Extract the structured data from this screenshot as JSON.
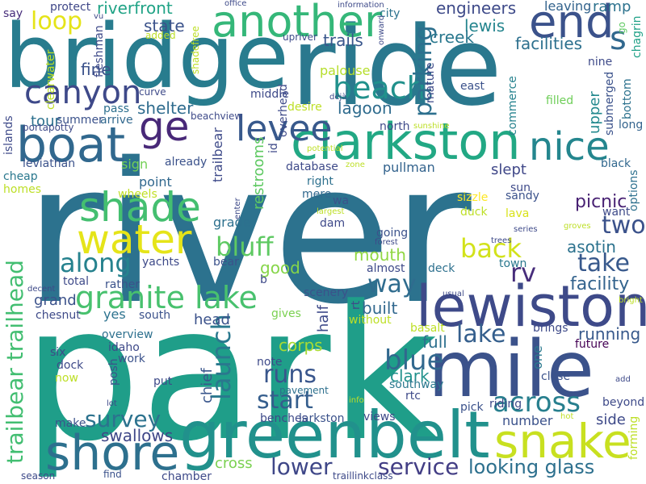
{
  "words": [
    {
      "text": "river",
      "color": "#2c728e",
      "rot": 0
    },
    {
      "text": "park",
      "color": "#1f9e89",
      "rot": 0
    },
    {
      "text": "bridge",
      "color": "#287c8e",
      "rot": 0
    },
    {
      "text": "ride",
      "color": "#2a788e",
      "rot": 0
    },
    {
      "text": "greenbelt",
      "color": "#21918c",
      "rot": 0
    },
    {
      "text": "mile",
      "color": "#3b528b",
      "rot": 0
    },
    {
      "text": "lewiston",
      "color": "#3e4a89",
      "rot": 0
    },
    {
      "text": "clarkston",
      "color": "#22a884",
      "rot": 0
    },
    {
      "text": "boat",
      "color": "#31688e",
      "rot": 0
    },
    {
      "text": "another",
      "color": "#35b779",
      "rot": 0
    },
    {
      "text": "shore",
      "color": "#2d708e",
      "rot": 0
    },
    {
      "text": "snake",
      "color": "#c8e020",
      "rot": 0
    },
    {
      "text": "end",
      "color": "#3b528b",
      "rot": 0
    },
    {
      "text": "canyon",
      "color": "#3e4989",
      "rot": 0
    },
    {
      "text": "levee",
      "color": "#38598c",
      "rot": 0
    },
    {
      "text": "shade",
      "color": "#44bf70",
      "rot": 0
    },
    {
      "text": "water",
      "color": "#e5e419",
      "rot": 0
    },
    {
      "text": "nice",
      "color": "#24868e",
      "rot": 0
    },
    {
      "text": "granite lake",
      "color": "#48c16e",
      "rot": 0
    },
    {
      "text": "beach",
      "color": "#21918c",
      "rot": 0
    },
    {
      "text": "ge",
      "color": "#482878",
      "rot": 0
    },
    {
      "text": "trailbear trailhead",
      "color": "#42be71",
      "rot": 270
    },
    {
      "text": "parking",
      "color": "#2d708e",
      "rot": 270
    },
    {
      "text": "bluff",
      "color": "#5ec962",
      "rot": 0
    },
    {
      "text": "blue",
      "color": "#31688e",
      "rot": 0
    },
    {
      "text": "along",
      "color": "#26828e",
      "rot": 0
    },
    {
      "text": "launch",
      "color": "#2a788e",
      "rot": 270
    },
    {
      "text": "across",
      "color": "#277f8e",
      "rot": 0
    },
    {
      "text": "back",
      "color": "#d2e21b",
      "rot": 0
    },
    {
      "text": "two",
      "color": "#3b528b",
      "rot": 0
    },
    {
      "text": "rv",
      "color": "#472d7b",
      "rot": 0
    },
    {
      "text": "way",
      "color": "#2f6c8e",
      "rot": 0
    },
    {
      "text": "lake",
      "color": "#355f8d",
      "rot": 0
    },
    {
      "text": "take",
      "color": "#38598c",
      "rot": 0
    },
    {
      "text": "runs",
      "color": "#39568c",
      "rot": 0
    },
    {
      "text": "start",
      "color": "#355e8d",
      "rot": 0
    },
    {
      "text": "survey",
      "color": "#2c728e",
      "rot": 0
    },
    {
      "text": "service",
      "color": "#433e85",
      "rot": 0
    },
    {
      "text": "lower",
      "color": "#3f4788",
      "rot": 0
    },
    {
      "text": "looking glass",
      "color": "#2d708e",
      "rot": 0
    },
    {
      "text": "s",
      "color": "#31688e",
      "rot": 0
    },
    {
      "text": "loop",
      "color": "#e5e419",
      "rot": 0
    },
    {
      "text": "picnic",
      "color": "#482173",
      "rot": 0
    },
    {
      "text": "facility",
      "color": "#33638d",
      "rot": 0
    },
    {
      "text": "asotin",
      "color": "#2c728e",
      "rot": 0
    },
    {
      "text": "riverfront",
      "color": "#20a386",
      "rot": 0
    },
    {
      "text": "state",
      "color": "#3b528b",
      "rot": 0
    },
    {
      "text": "engineers",
      "color": "#3e4a89",
      "rot": 0
    },
    {
      "text": "lewis",
      "color": "#25858e",
      "rot": 0
    },
    {
      "text": "creek",
      "color": "#2a788e",
      "rot": 0
    },
    {
      "text": "facilities",
      "color": "#2d708e",
      "rot": 0
    },
    {
      "text": "trails",
      "color": "#39568c",
      "rot": 0
    },
    {
      "text": "fine",
      "color": "#3b528b",
      "rot": 0
    },
    {
      "text": "shelter",
      "color": "#2f6c8e",
      "rot": 0
    },
    {
      "text": "lagoon",
      "color": "#2f6c8e",
      "rot": 0
    },
    {
      "text": "mouth",
      "color": "#90d743",
      "rot": 0
    },
    {
      "text": "good",
      "color": "#86d549",
      "rot": 0
    },
    {
      "text": "corps",
      "color": "#a8db34",
      "rot": 0
    },
    {
      "text": "full",
      "color": "#2d708e",
      "rot": 0
    },
    {
      "text": "clark",
      "color": "#21918c",
      "rot": 0
    },
    {
      "text": "running",
      "color": "#38598c",
      "rot": 0
    },
    {
      "text": "swallows",
      "color": "#3f4788",
      "rot": 0
    },
    {
      "text": "built",
      "color": "#31688e",
      "rot": 0
    },
    {
      "text": "grand",
      "color": "#3b528b",
      "rot": 0
    },
    {
      "text": "tour",
      "color": "#2d708e",
      "rot": 0
    },
    {
      "text": "yes",
      "color": "#2c728e",
      "rot": 0
    },
    {
      "text": "half",
      "color": "#3e4a89",
      "rot": 270
    },
    {
      "text": "head",
      "color": "#3b528b",
      "rot": 0
    },
    {
      "text": "chief",
      "color": "#39568c",
      "rot": 270
    },
    {
      "text": "cross",
      "color": "#7ad151",
      "rot": 0
    },
    {
      "text": "ramp",
      "color": "#2c728e",
      "rot": 0
    },
    {
      "text": "upper",
      "color": "#23898e",
      "rot": 270
    },
    {
      "text": "number",
      "color": "#3b528b",
      "rot": 0
    },
    {
      "text": "side",
      "color": "#3e4a89",
      "rot": 0
    },
    {
      "text": "one",
      "color": "#2a788e",
      "rot": 270
    },
    {
      "text": "slept",
      "color": "#3f4788",
      "rot": 0
    },
    {
      "text": "leaving",
      "color": "#33638d",
      "rot": 0
    },
    {
      "text": "city",
      "color": "#2c728e",
      "rot": 0
    },
    {
      "text": "palouse",
      "color": "#b5de2b",
      "rot": 0
    },
    {
      "text": "middle",
      "color": "#3e4a89",
      "rot": 0
    },
    {
      "text": "pass",
      "color": "#2d708e",
      "rot": 0
    },
    {
      "text": "arrive",
      "color": "#31688e",
      "rot": 0
    },
    {
      "text": "summer",
      "color": "#3b528b",
      "rot": 0
    },
    {
      "text": "protect",
      "color": "#3f4788",
      "rot": 0
    },
    {
      "text": "say",
      "color": "#472d7b",
      "rot": 0
    },
    {
      "text": "cheap",
      "color": "#2a788e",
      "rot": 0
    },
    {
      "text": "homes",
      "color": "#bddf26",
      "rot": 0
    },
    {
      "text": "leviathan",
      "color": "#3b528b",
      "rot": 0
    },
    {
      "text": "point",
      "color": "#31688e",
      "rot": 0
    },
    {
      "text": "wheels",
      "color": "#c0df25",
      "rot": 0
    },
    {
      "text": "sign",
      "color": "#73d056",
      "rot": 0
    },
    {
      "text": "already",
      "color": "#3b528b",
      "rot": 0
    },
    {
      "text": "database",
      "color": "#3e4a89",
      "rot": 0
    },
    {
      "text": "pullman",
      "color": "#33638d",
      "rot": 0
    },
    {
      "text": "right",
      "color": "#2d708e",
      "rot": 0
    },
    {
      "text": "mere",
      "color": "#31688e",
      "rot": 0
    },
    {
      "text": "dam",
      "color": "#3e4989",
      "rot": 0
    },
    {
      "text": "going",
      "color": "#3b528b",
      "rot": 0
    },
    {
      "text": "deck",
      "color": "#2d708e",
      "rot": 0
    },
    {
      "text": "town",
      "color": "#2a788e",
      "rot": 0
    },
    {
      "text": "almost",
      "color": "#3e4a89",
      "rot": 0
    },
    {
      "text": "sandy",
      "color": "#3b528b",
      "rot": 0
    },
    {
      "text": "sun",
      "color": "#3e4a89",
      "rot": 0
    },
    {
      "text": "sizzle",
      "color": "#fde725",
      "rot": 0
    },
    {
      "text": "duck",
      "color": "#bddf26",
      "rot": 0
    },
    {
      "text": "lava",
      "color": "#d8e219",
      "rot": 0
    },
    {
      "text": "want",
      "color": "#3e4a89",
      "rot": 0
    },
    {
      "text": "black",
      "color": "#31688e",
      "rot": 0
    },
    {
      "text": "options",
      "color": "#2d708e",
      "rot": 270
    },
    {
      "text": "east",
      "color": "#3b528b",
      "rot": 0
    },
    {
      "text": "commerce",
      "color": "#26828e",
      "rot": 270
    },
    {
      "text": "filled",
      "color": "#6ece58",
      "rot": 0
    },
    {
      "text": "submerged",
      "color": "#3b528b",
      "rot": 270
    },
    {
      "text": "nine",
      "color": "#3e4a89",
      "rot": 0
    },
    {
      "text": "long",
      "color": "#33638d",
      "rot": 0
    },
    {
      "text": "bottom",
      "color": "#2c728e",
      "rot": 270
    },
    {
      "text": "chagrin",
      "color": "#1fa187",
      "rot": 270
    },
    {
      "text": "go",
      "color": "#5ec962",
      "rot": 270
    },
    {
      "text": "trailbear",
      "color": "#3e4a89",
      "rot": 0
    },
    {
      "text": "restrooms",
      "color": "#5ec962",
      "rot": 270
    },
    {
      "text": "wa",
      "color": "#3b528b",
      "rot": 270
    },
    {
      "text": "b",
      "color": "#3e4a89",
      "rot": 0
    },
    {
      "text": "scenery",
      "color": "#3b528b",
      "rot": 0
    },
    {
      "text": "gives",
      "color": "#7ad151",
      "rot": 0
    },
    {
      "text": "without",
      "color": "#bddf26",
      "rot": 0
    },
    {
      "text": "idaho",
      "color": "#3e4989",
      "rot": 0
    },
    {
      "text": "overview",
      "color": "#2d708e",
      "rot": 0
    },
    {
      "text": "work",
      "color": "#3b528b",
      "rot": 0
    },
    {
      "text": "six",
      "color": "#3e4a89",
      "rot": 0
    },
    {
      "text": "dock",
      "color": "#3e4a89",
      "rot": 0
    },
    {
      "text": "now",
      "color": "#bddf26",
      "rot": 0
    },
    {
      "text": "posh",
      "color": "#3b528b",
      "rot": 0
    },
    {
      "text": "put",
      "color": "#3e4a89",
      "rot": 270
    },
    {
      "text": "note",
      "color": "#3e4a89",
      "rot": 0
    },
    {
      "text": "pavement",
      "color": "#2d708e",
      "rot": 0
    },
    {
      "text": "south",
      "color": "#3b528b",
      "rot": 0
    },
    {
      "text": "chesnut",
      "color": "#3e4a89",
      "rot": 0
    },
    {
      "text": "rather",
      "color": "#3b528b",
      "rot": 0
    },
    {
      "text": "total",
      "color": "#3e4a89",
      "rot": 0
    },
    {
      "text": "bear",
      "color": "#3b528b",
      "rot": 0
    },
    {
      "text": "yachts",
      "color": "#3e4a89",
      "rot": 0
    },
    {
      "text": "grade",
      "color": "#2d708e",
      "rot": 0
    },
    {
      "text": "southway",
      "color": "#2a788e",
      "rot": 0
    },
    {
      "text": "rtc",
      "color": "#3e4a89",
      "rot": 0
    },
    {
      "text": "basalt",
      "color": "#bddf26",
      "rot": 0
    },
    {
      "text": "brings",
      "color": "#3e4a89",
      "rot": 0
    },
    {
      "text": "future",
      "color": "#440154",
      "rot": 0
    },
    {
      "text": "close",
      "color": "#3b528b",
      "rot": 0
    },
    {
      "text": "add",
      "color": "#3e4a89",
      "rot": 0
    },
    {
      "text": "beyond",
      "color": "#3e4a89",
      "rot": 0
    },
    {
      "text": "riding",
      "color": "#3e4a89",
      "rot": 0
    },
    {
      "text": "pick",
      "color": "#3b528b",
      "rot": 0
    },
    {
      "text": "hot",
      "color": "#c0df25",
      "rot": 0
    },
    {
      "text": "forming",
      "color": "#bddf26",
      "rot": 0
    },
    {
      "text": "views",
      "color": "#3e4a89",
      "rot": 270
    },
    {
      "text": "larkston",
      "color": "#3b528b",
      "rot": 0
    },
    {
      "text": "benches",
      "color": "#3e4a89",
      "rot": 0
    },
    {
      "text": "make",
      "color": "#3b528b",
      "rot": 0
    },
    {
      "text": "lot",
      "color": "#3e4a89",
      "rot": 0
    },
    {
      "text": "find",
      "color": "#3b528b",
      "rot": 0
    },
    {
      "text": "season",
      "color": "#3e4a89",
      "rot": 0
    },
    {
      "text": "chamber",
      "color": "#3e4a89",
      "rot": 0
    },
    {
      "text": "traillinkclass",
      "color": "#3e4a89",
      "rot": 0
    },
    {
      "text": "info",
      "color": "#bddf26",
      "rot": 0
    },
    {
      "text": "bright",
      "color": "#bddf26",
      "rot": 0
    },
    {
      "text": "usual",
      "color": "#3e4a89",
      "rot": 0
    },
    {
      "text": "series",
      "color": "#3e4a89",
      "rot": 0
    },
    {
      "text": "groves",
      "color": "#bddf26",
      "rot": 0
    },
    {
      "text": "trees",
      "color": "#3e4a89",
      "rot": 0
    },
    {
      "text": "sunshine",
      "color": "#bddf26",
      "rot": 0
    },
    {
      "text": "potential",
      "color": "#bddf26",
      "rot": 0
    },
    {
      "text": "zone",
      "color": "#bddf26",
      "rot": 0
    },
    {
      "text": "largest",
      "color": "#bddf26",
      "rot": 0
    },
    {
      "text": "forest",
      "color": "#3e4a89",
      "rot": 0
    },
    {
      "text": "rt",
      "color": "#3e4a89",
      "rot": 0
    },
    {
      "text": "decent",
      "color": "#3e4a89",
      "rot": 270
    },
    {
      "text": "islands",
      "color": "#3e4a89",
      "rot": 0
    },
    {
      "text": "portapotty",
      "color": "#3e4a89",
      "rot": 270
    },
    {
      "text": "clearwater",
      "color": "#bddf26",
      "rot": 0
    },
    {
      "text": "fleshman",
      "color": "#3e4a89",
      "rot": 270
    },
    {
      "text": "curve",
      "color": "#3e4a89",
      "rot": 270
    },
    {
      "text": "added",
      "color": "#bddf26",
      "rot": 0
    },
    {
      "text": "vu",
      "color": "#3e4a89",
      "rot": 0
    },
    {
      "text": "office",
      "color": "#3e4a89",
      "rot": 0
    },
    {
      "text": "information",
      "color": "#3e4a89",
      "rot": 0
    },
    {
      "text": "shadefree",
      "color": "#bddf26",
      "rot": 0
    },
    {
      "text": "beachview",
      "color": "#3e4a89",
      "rot": 270
    },
    {
      "text": "desire",
      "color": "#bddf26",
      "rot": 0
    },
    {
      "text": "id",
      "color": "#3e4a89",
      "rot": 0
    },
    {
      "text": "overhead",
      "color": "#3e4a89",
      "rot": 270
    },
    {
      "text": "north",
      "color": "#3e4a89",
      "rot": 270
    },
    {
      "text": "déjà",
      "color": "#3e4a89",
      "rot": 0
    },
    {
      "text": "mature",
      "color": "#3e4a89",
      "rot": 0
    },
    {
      "text": "upriver",
      "color": "#3e4a89",
      "rot": 270
    },
    {
      "text": "onward",
      "color": "#3e4a89",
      "rot": 0
    },
    {
      "text": "enter",
      "color": "#3e4a89",
      "rot": 270
    },
    {
      "text": "recreation",
      "color": "#3e4a89",
      "rot": 270
    }
  ]
}
